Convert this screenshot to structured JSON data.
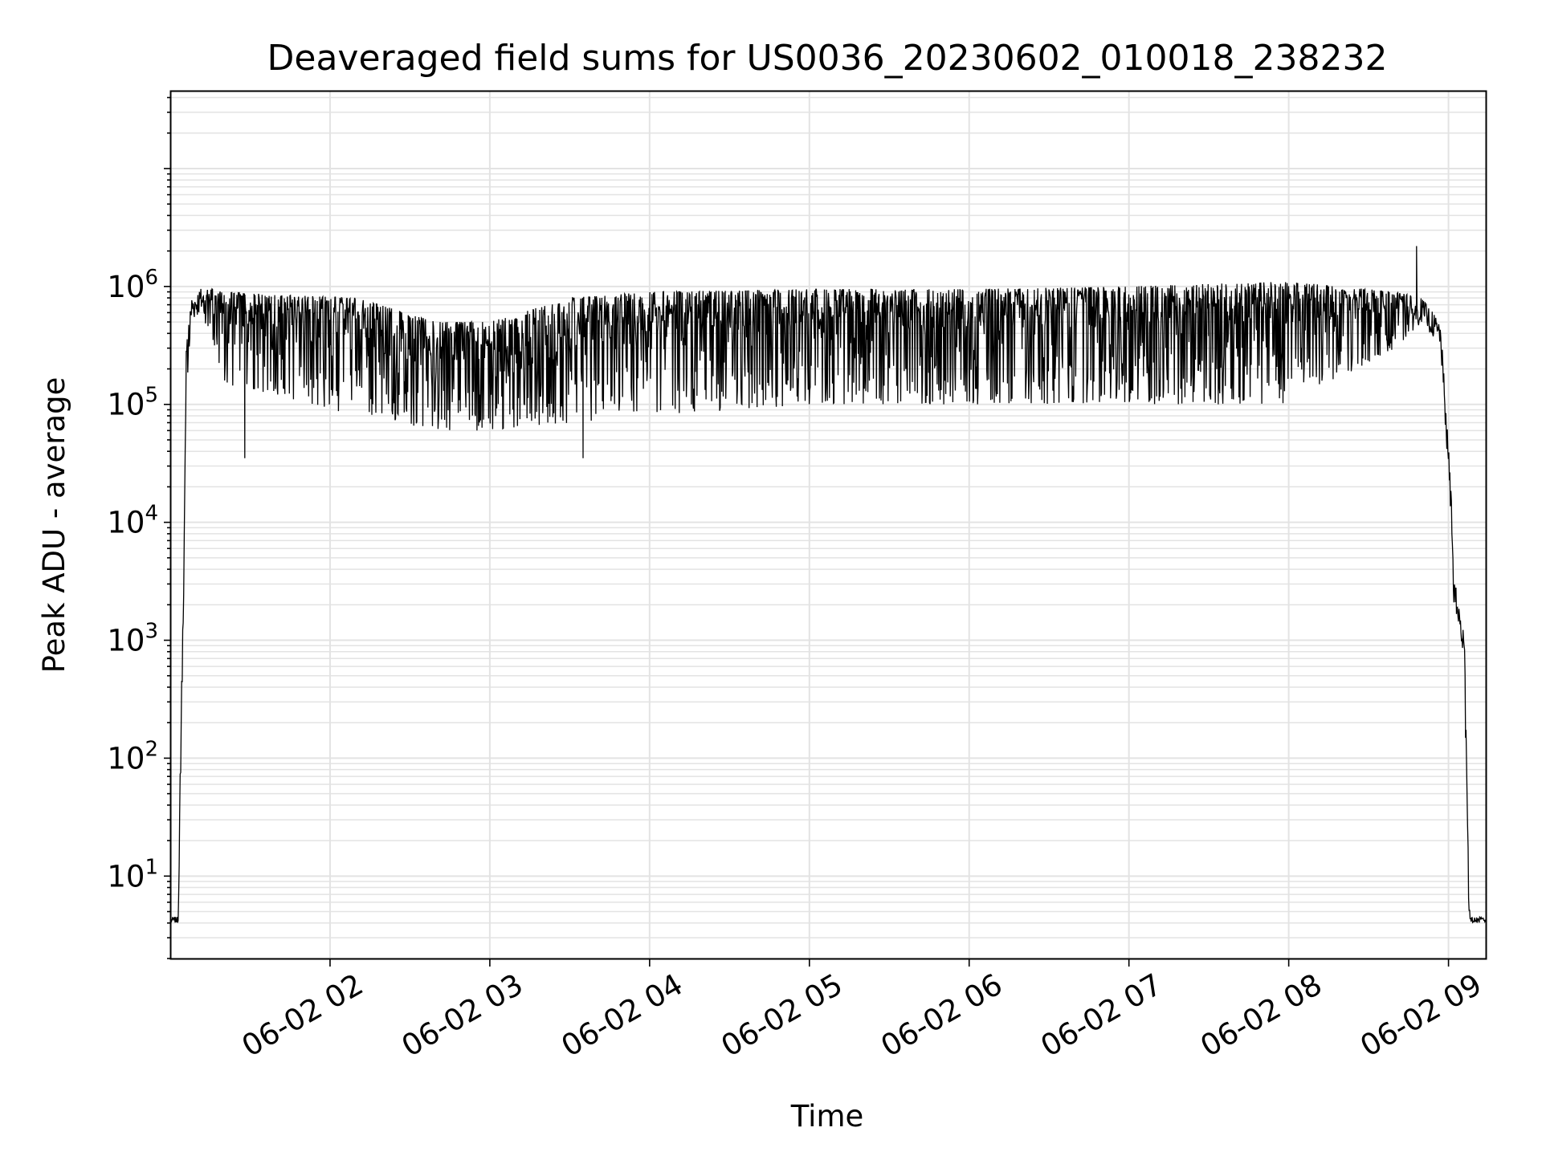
{
  "chart_data": {
    "type": "line",
    "title": "Deaveraged field sums for US0036_20230602_010018_238232",
    "xlabel": "Time",
    "ylabel": "Peak ADU - average",
    "y_scale": "log",
    "ylim": [
      2,
      45000000
    ],
    "xlim": [
      "2023-06-02 01:00:18",
      "2023-06-02 09:14:00"
    ],
    "x_ticks": [
      {
        "label": "06-02 02",
        "time": "2023-06-02 02:00"
      },
      {
        "label": "06-02 03",
        "time": "2023-06-02 03:00"
      },
      {
        "label": "06-02 04",
        "time": "2023-06-02 04:00"
      },
      {
        "label": "06-02 05",
        "time": "2023-06-02 05:00"
      },
      {
        "label": "06-02 06",
        "time": "2023-06-02 06:00"
      },
      {
        "label": "06-02 07",
        "time": "2023-06-02 07:00"
      },
      {
        "label": "06-02 08",
        "time": "2023-06-02 08:00"
      },
      {
        "label": "06-02 09",
        "time": "2023-06-02 09:00"
      }
    ],
    "y_ticks": [
      {
        "base": "10",
        "exp": "1",
        "value": 10
      },
      {
        "base": "10",
        "exp": "2",
        "value": 100
      },
      {
        "base": "10",
        "exp": "3",
        "value": 1000
      },
      {
        "base": "10",
        "exp": "4",
        "value": 10000
      },
      {
        "base": "10",
        "exp": "5",
        "value": 100000
      },
      {
        "base": "10",
        "exp": "6",
        "value": 1000000
      }
    ],
    "grid": true,
    "line_color": "#000000",
    "grid_color": "#e3e3e3",
    "series": [
      {
        "envelope": [
          {
            "time": "2023-06-02 01:00",
            "low": 4,
            "high": 4.5
          },
          {
            "time": "2023-06-02 01:03",
            "low": 4,
            "high": 4.5
          },
          {
            "time": "2023-06-02 01:04",
            "low": 100,
            "high": 300
          },
          {
            "time": "2023-06-02 01:05",
            "low": 2000,
            "high": 3000
          },
          {
            "time": "2023-06-02 01:06",
            "low": 100000,
            "high": 300000
          },
          {
            "time": "2023-06-02 01:08",
            "low": 500000,
            "high": 900000
          },
          {
            "time": "2023-06-02 01:12",
            "low": 600000,
            "high": 1000000
          },
          {
            "time": "2023-06-02 01:20",
            "low": 150000,
            "high": 900000
          },
          {
            "time": "2023-06-02 01:40",
            "low": 120000,
            "high": 850000
          },
          {
            "time": "2023-06-02 02:10",
            "low": 80000,
            "high": 800000
          },
          {
            "time": "2023-06-02 02:40",
            "low": 60000,
            "high": 500000
          },
          {
            "time": "2023-06-02 03:00",
            "low": 60000,
            "high": 500000
          },
          {
            "time": "2023-06-02 03:30",
            "low": 70000,
            "high": 800000
          },
          {
            "time": "2023-06-02 04:00",
            "low": 80000,
            "high": 900000
          },
          {
            "time": "2023-06-02 05:00",
            "low": 100000,
            "high": 950000
          },
          {
            "time": "2023-06-02 06:00",
            "low": 100000,
            "high": 950000
          },
          {
            "time": "2023-06-02 07:00",
            "low": 100000,
            "high": 1000000
          },
          {
            "time": "2023-06-02 08:00",
            "low": 100000,
            "high": 1100000
          },
          {
            "time": "2023-06-02 08:40",
            "low": 300000,
            "high": 900000
          },
          {
            "time": "2023-06-02 08:50",
            "low": 500000,
            "high": 800000
          },
          {
            "time": "2023-06-02 08:57",
            "low": 300000,
            "high": 500000
          },
          {
            "time": "2023-06-02 09:01",
            "low": 10000,
            "high": 20000
          },
          {
            "time": "2023-06-02 09:02",
            "low": 2000,
            "high": 3500
          },
          {
            "time": "2023-06-02 09:06",
            "low": 600,
            "high": 1200
          },
          {
            "time": "2023-06-02 09:07",
            "low": 10,
            "high": 50
          },
          {
            "time": "2023-06-02 09:08",
            "low": 4,
            "high": 4.5
          },
          {
            "time": "2023-06-02 09:14",
            "low": 4,
            "high": 4.5
          }
        ],
        "peaks": [
          {
            "time": "2023-06-02 01:28",
            "value": 35000
          },
          {
            "time": "2023-06-02 03:35",
            "value": 35000
          },
          {
            "time": "2023-06-02 08:48",
            "value": 2200000
          }
        ]
      }
    ]
  }
}
